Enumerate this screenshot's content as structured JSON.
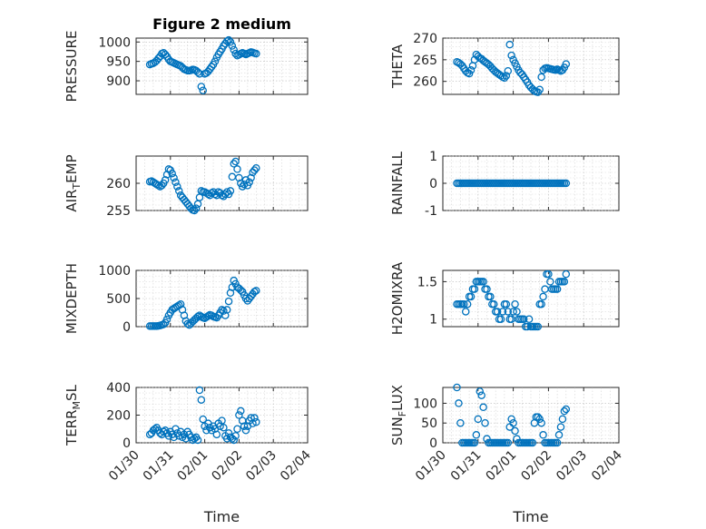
{
  "figure": {
    "marker_color": "#0072bd",
    "x_ticks": [
      "01/30",
      "01/31",
      "02/01",
      "02/02",
      "02/03",
      "02/04"
    ]
  },
  "chart_data": [
    {
      "type": "scatter",
      "title": "Figure 2 medium",
      "ylabel": "PRESSURE",
      "xlabel": "",
      "xlim": [
        0,
        5
      ],
      "ylim": [
        865,
        1010
      ],
      "yticks": [
        900,
        950,
        1000
      ],
      "grid": true,
      "x": [
        0.4,
        0.45,
        0.5,
        0.55,
        0.6,
        0.65,
        0.7,
        0.75,
        0.8,
        0.85,
        0.9,
        0.95,
        1.0,
        1.05,
        1.1,
        1.15,
        1.2,
        1.25,
        1.3,
        1.35,
        1.4,
        1.45,
        1.5,
        1.55,
        1.6,
        1.65,
        1.7,
        1.75,
        1.8,
        1.85,
        1.9,
        1.95,
        2.0,
        2.05,
        2.1,
        2.15,
        2.2,
        2.25,
        2.3,
        2.35,
        2.4,
        2.45,
        2.5,
        2.55,
        2.6,
        2.65,
        2.7,
        2.75,
        2.8,
        2.85,
        2.9,
        2.95,
        3.0,
        3.05,
        3.1,
        3.15,
        3.2,
        3.25,
        3.3,
        3.35,
        3.4,
        3.45,
        3.5
      ],
      "y": [
        942,
        944,
        945,
        948,
        952,
        958,
        963,
        970,
        972,
        968,
        962,
        955,
        950,
        948,
        946,
        944,
        942,
        940,
        938,
        934,
        930,
        928,
        926,
        926,
        927,
        929,
        928,
        926,
        922,
        918,
        885,
        875,
        918,
        920,
        924,
        930,
        936,
        942,
        950,
        960,
        968,
        975,
        982,
        990,
        996,
        1002,
        1005,
        1000,
        990,
        980,
        970,
        965,
        967,
        970,
        972,
        970,
        968,
        970,
        972,
        974,
        973,
        971,
        970
      ]
    },
    {
      "type": "scatter",
      "title": "",
      "ylabel": "THETA",
      "xlabel": "",
      "xlim": [
        0,
        5
      ],
      "ylim": [
        257,
        270
      ],
      "yticks": [
        260,
        265,
        270
      ],
      "grid": true,
      "x": [
        0.4,
        0.45,
        0.5,
        0.55,
        0.6,
        0.65,
        0.7,
        0.75,
        0.8,
        0.85,
        0.9,
        0.95,
        1.0,
        1.05,
        1.1,
        1.15,
        1.2,
        1.25,
        1.3,
        1.35,
        1.4,
        1.45,
        1.5,
        1.55,
        1.6,
        1.65,
        1.7,
        1.75,
        1.8,
        1.85,
        1.9,
        1.95,
        2.0,
        2.05,
        2.1,
        2.15,
        2.2,
        2.25,
        2.3,
        2.35,
        2.4,
        2.45,
        2.5,
        2.55,
        2.6,
        2.65,
        2.7,
        2.75,
        2.8,
        2.85,
        2.9,
        2.95,
        3.0,
        3.05,
        3.1,
        3.15,
        3.2,
        3.25,
        3.3,
        3.35,
        3.4,
        3.45,
        3.5
      ],
      "y": [
        264.5,
        264.3,
        264.0,
        263.6,
        263.0,
        262.4,
        262.0,
        261.8,
        262.6,
        263.6,
        265.0,
        266.2,
        265.8,
        265.4,
        265.2,
        264.8,
        264.5,
        264.2,
        263.9,
        263.5,
        263.0,
        262.6,
        262.2,
        261.9,
        261.6,
        261.3,
        261.0,
        260.8,
        261.3,
        262.4,
        268.5,
        266.0,
        265.0,
        264.2,
        263.4,
        262.6,
        262.0,
        261.6,
        261.0,
        260.4,
        259.8,
        259.1,
        258.6,
        258.2,
        257.8,
        257.6,
        257.5,
        258.1,
        261.0,
        262.6,
        263.0,
        263.1,
        263.0,
        262.9,
        262.8,
        262.7,
        262.6,
        262.8,
        262.6,
        262.4,
        262.6,
        263.2,
        264.0
      ]
    },
    {
      "type": "scatter",
      "title": "",
      "ylabel": "AIR_TEMP",
      "xlabel": "",
      "xlim": [
        0,
        5
      ],
      "ylim": [
        255,
        265
      ],
      "yticks": [
        255,
        260
      ],
      "grid": true,
      "x": [
        0.4,
        0.45,
        0.5,
        0.55,
        0.6,
        0.65,
        0.7,
        0.75,
        0.8,
        0.85,
        0.9,
        0.95,
        1.0,
        1.05,
        1.1,
        1.15,
        1.2,
        1.25,
        1.3,
        1.35,
        1.4,
        1.45,
        1.5,
        1.55,
        1.6,
        1.65,
        1.7,
        1.75,
        1.8,
        1.85,
        1.9,
        1.95,
        2.0,
        2.05,
        2.1,
        2.15,
        2.2,
        2.25,
        2.3,
        2.35,
        2.4,
        2.45,
        2.5,
        2.55,
        2.6,
        2.65,
        2.7,
        2.75,
        2.8,
        2.85,
        2.9,
        2.95,
        3.0,
        3.05,
        3.1,
        3.15,
        3.2,
        3.25,
        3.3,
        3.35,
        3.4,
        3.45,
        3.5
      ],
      "y": [
        260.3,
        260.4,
        260.2,
        260.0,
        259.8,
        259.6,
        259.4,
        259.6,
        260.0,
        260.6,
        261.6,
        262.6,
        262.4,
        261.8,
        261.0,
        260.2,
        259.4,
        258.6,
        257.8,
        257.4,
        257.0,
        256.6,
        256.2,
        255.8,
        255.4,
        255.1,
        255.0,
        255.4,
        256.2,
        257.4,
        258.6,
        258.4,
        258.4,
        258.2,
        258.0,
        257.8,
        258.2,
        258.4,
        258.0,
        257.8,
        258.4,
        258.2,
        257.8,
        257.6,
        258.0,
        258.4,
        258.0,
        258.6,
        261.2,
        263.6,
        264.0,
        262.6,
        261.0,
        260.0,
        259.4,
        259.8,
        260.6,
        259.6,
        260.2,
        261.0,
        262.0,
        262.4,
        262.8
      ]
    },
    {
      "type": "scatter",
      "title": "",
      "ylabel": "RAINFALL",
      "xlabel": "",
      "xlim": [
        0,
        5
      ],
      "ylim": [
        -1,
        1
      ],
      "yticks": [
        -1,
        0,
        1
      ],
      "grid": true,
      "x": [
        0.4,
        0.45,
        0.5,
        0.55,
        0.6,
        0.65,
        0.7,
        0.75,
        0.8,
        0.85,
        0.9,
        0.95,
        1.0,
        1.05,
        1.1,
        1.15,
        1.2,
        1.25,
        1.3,
        1.35,
        1.4,
        1.45,
        1.5,
        1.55,
        1.6,
        1.65,
        1.7,
        1.75,
        1.8,
        1.85,
        1.9,
        1.95,
        2.0,
        2.05,
        2.1,
        2.15,
        2.2,
        2.25,
        2.3,
        2.35,
        2.4,
        2.45,
        2.5,
        2.55,
        2.6,
        2.65,
        2.7,
        2.75,
        2.8,
        2.85,
        2.9,
        2.95,
        3.0,
        3.05,
        3.1,
        3.15,
        3.2,
        3.25,
        3.3,
        3.35,
        3.4,
        3.45,
        3.5
      ],
      "y": [
        0,
        0,
        0,
        0,
        0,
        0,
        0,
        0,
        0,
        0,
        0,
        0,
        0,
        0,
        0,
        0,
        0,
        0,
        0,
        0,
        0,
        0,
        0,
        0,
        0,
        0,
        0,
        0,
        0,
        0,
        0,
        0,
        0,
        0,
        0,
        0,
        0,
        0,
        0,
        0,
        0,
        0,
        0,
        0,
        0,
        0,
        0,
        0,
        0,
        0,
        0,
        0,
        0,
        0,
        0,
        0,
        0,
        0,
        0,
        0,
        0,
        0,
        0
      ]
    },
    {
      "type": "scatter",
      "title": "",
      "ylabel": "MIXDEPTH",
      "xlabel": "",
      "xlim": [
        0,
        5
      ],
      "ylim": [
        0,
        1000
      ],
      "yticks": [
        0,
        500,
        1000
      ],
      "grid": true,
      "x": [
        0.4,
        0.45,
        0.5,
        0.55,
        0.6,
        0.65,
        0.7,
        0.75,
        0.8,
        0.85,
        0.9,
        0.95,
        1.0,
        1.05,
        1.1,
        1.15,
        1.2,
        1.25,
        1.3,
        1.35,
        1.4,
        1.45,
        1.5,
        1.55,
        1.6,
        1.65,
        1.7,
        1.75,
        1.8,
        1.85,
        1.9,
        1.95,
        2.0,
        2.05,
        2.1,
        2.15,
        2.2,
        2.25,
        2.3,
        2.35,
        2.4,
        2.45,
        2.5,
        2.55,
        2.6,
        2.65,
        2.7,
        2.75,
        2.8,
        2.85,
        2.9,
        2.95,
        3.0,
        3.05,
        3.1,
        3.15,
        3.2,
        3.25,
        3.3,
        3.35,
        3.4,
        3.45,
        3.5
      ],
      "y": [
        10,
        10,
        10,
        10,
        10,
        15,
        20,
        30,
        40,
        70,
        130,
        200,
        250,
        300,
        320,
        340,
        360,
        380,
        400,
        300,
        200,
        100,
        50,
        30,
        60,
        90,
        120,
        150,
        180,
        200,
        180,
        160,
        150,
        170,
        190,
        210,
        200,
        180,
        170,
        160,
        200,
        250,
        300,
        280,
        200,
        300,
        450,
        600,
        700,
        820,
        760,
        700,
        680,
        650,
        620,
        560,
        500,
        460,
        500,
        540,
        580,
        620,
        640
      ]
    },
    {
      "type": "scatter",
      "title": "",
      "ylabel": "H2OMIXRA",
      "xlabel": "",
      "xlim": [
        0,
        5
      ],
      "ylim": [
        0.9,
        1.65
      ],
      "yticks": [
        1,
        1.5
      ],
      "grid": true,
      "x": [
        0.4,
        0.45,
        0.5,
        0.55,
        0.6,
        0.65,
        0.7,
        0.75,
        0.8,
        0.85,
        0.9,
        0.95,
        1.0,
        1.05,
        1.1,
        1.15,
        1.2,
        1.25,
        1.3,
        1.35,
        1.4,
        1.45,
        1.5,
        1.55,
        1.6,
        1.65,
        1.7,
        1.75,
        1.8,
        1.85,
        1.9,
        1.95,
        2.0,
        2.05,
        2.1,
        2.15,
        2.2,
        2.25,
        2.3,
        2.35,
        2.4,
        2.45,
        2.5,
        2.55,
        2.6,
        2.65,
        2.7,
        2.75,
        2.8,
        2.85,
        2.9,
        2.95,
        3.0,
        3.05,
        3.1,
        3.15,
        3.2,
        3.25,
        3.3,
        3.35,
        3.4,
        3.45,
        3.5
      ],
      "y": [
        1.2,
        1.2,
        1.2,
        1.2,
        1.2,
        1.1,
        1.2,
        1.3,
        1.3,
        1.4,
        1.4,
        1.5,
        1.5,
        1.5,
        1.5,
        1.5,
        1.4,
        1.4,
        1.3,
        1.3,
        1.2,
        1.2,
        1.1,
        1.1,
        1.0,
        1.0,
        1.1,
        1.2,
        1.2,
        1.1,
        1.0,
        1.0,
        1.1,
        1.2,
        1.1,
        1.0,
        1.0,
        1.0,
        1.0,
        0.9,
        0.9,
        1.0,
        0.9,
        0.9,
        0.9,
        0.9,
        0.9,
        1.2,
        1.2,
        1.3,
        1.4,
        1.6,
        1.6,
        1.5,
        1.4,
        1.4,
        1.4,
        1.4,
        1.5,
        1.5,
        1.5,
        1.5,
        1.6
      ]
    },
    {
      "type": "scatter",
      "title": "",
      "ylabel": "TERR_MSL",
      "xlabel": "Time",
      "xlim": [
        0,
        5
      ],
      "ylim": [
        0,
        400
      ],
      "yticks": [
        0,
        200,
        400
      ],
      "grid": true,
      "x": [
        0.4,
        0.45,
        0.5,
        0.55,
        0.6,
        0.65,
        0.7,
        0.75,
        0.8,
        0.85,
        0.9,
        0.95,
        1.0,
        1.05,
        1.1,
        1.15,
        1.2,
        1.25,
        1.3,
        1.35,
        1.4,
        1.45,
        1.5,
        1.55,
        1.6,
        1.65,
        1.7,
        1.75,
        1.8,
        1.85,
        1.9,
        1.95,
        2.0,
        2.05,
        2.1,
        2.15,
        2.2,
        2.25,
        2.3,
        2.35,
        2.4,
        2.45,
        2.5,
        2.55,
        2.6,
        2.65,
        2.7,
        2.75,
        2.8,
        2.85,
        2.9,
        2.95,
        3.0,
        3.05,
        3.1,
        3.15,
        3.2,
        3.25,
        3.3,
        3.35,
        3.4,
        3.45,
        3.5
      ],
      "y": [
        60,
        70,
        90,
        100,
        110,
        90,
        70,
        60,
        80,
        90,
        70,
        50,
        80,
        60,
        40,
        100,
        70,
        50,
        80,
        40,
        60,
        30,
        80,
        60,
        40,
        20,
        30,
        40,
        20,
        380,
        310,
        170,
        120,
        90,
        140,
        110,
        90,
        120,
        100,
        60,
        140,
        120,
        160,
        110,
        50,
        30,
        70,
        40,
        30,
        20,
        50,
        100,
        200,
        230,
        160,
        120,
        90,
        120,
        160,
        180,
        140,
        180,
        150
      ]
    },
    {
      "type": "scatter",
      "title": "",
      "ylabel": "SUN_FLUX",
      "xlabel": "Time",
      "xlim": [
        0,
        5
      ],
      "ylim": [
        0,
        140
      ],
      "yticks": [
        0,
        50,
        100
      ],
      "grid": true,
      "x": [
        0.4,
        0.45,
        0.5,
        0.55,
        0.6,
        0.65,
        0.7,
        0.75,
        0.8,
        0.85,
        0.9,
        0.95,
        1.0,
        1.05,
        1.1,
        1.15,
        1.2,
        1.25,
        1.3,
        1.35,
        1.4,
        1.45,
        1.5,
        1.55,
        1.6,
        1.65,
        1.7,
        1.75,
        1.8,
        1.85,
        1.9,
        1.95,
        2.0,
        2.05,
        2.1,
        2.15,
        2.2,
        2.25,
        2.3,
        2.35,
        2.4,
        2.45,
        2.5,
        2.55,
        2.6,
        2.65,
        2.7,
        2.75,
        2.8,
        2.85,
        2.9,
        2.95,
        3.0,
        3.05,
        3.1,
        3.15,
        3.2,
        3.25,
        3.3,
        3.35,
        3.4,
        3.45,
        3.5
      ],
      "y": [
        140,
        100,
        50,
        0,
        0,
        0,
        0,
        0,
        0,
        0,
        0,
        20,
        60,
        130,
        120,
        90,
        50,
        10,
        0,
        0,
        0,
        0,
        0,
        0,
        0,
        0,
        0,
        0,
        0,
        0,
        40,
        60,
        50,
        30,
        10,
        0,
        0,
        0,
        0,
        0,
        0,
        0,
        0,
        0,
        50,
        65,
        65,
        60,
        50,
        20,
        0,
        0,
        0,
        0,
        0,
        0,
        0,
        0,
        20,
        40,
        60,
        80,
        85
      ]
    }
  ]
}
